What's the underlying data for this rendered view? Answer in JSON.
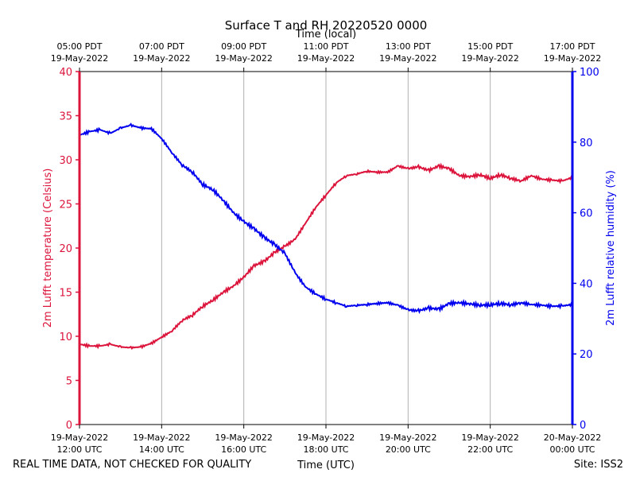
{
  "chart_data": {
    "type": "line",
    "title": "Surface T and RH 20220520 0000",
    "top_axis_label": "Time (local)",
    "xlabel": "Time (UTC)",
    "ylabel_left": "2m Lufft temperature (Celsius)",
    "ylabel_right": "2m Lufft relative humidity (%)",
    "footer_left": "REAL TIME DATA, NOT CHECKED FOR QUALITY",
    "footer_right": "Site: ISS2",
    "x_range_hours_utc": [
      12,
      24
    ],
    "ylim_left": [
      0,
      40
    ],
    "ylim_right": [
      0,
      100
    ],
    "left_ticks": [
      0,
      5,
      10,
      15,
      20,
      25,
      30,
      35,
      40
    ],
    "right_ticks": [
      0,
      20,
      40,
      60,
      80,
      100
    ],
    "x_ticks_bottom": [
      {
        "hour": 12,
        "date": "19-May-2022",
        "time": "12:00 UTC"
      },
      {
        "hour": 14,
        "date": "19-May-2022",
        "time": "14:00 UTC"
      },
      {
        "hour": 16,
        "date": "19-May-2022",
        "time": "16:00 UTC"
      },
      {
        "hour": 18,
        "date": "19-May-2022",
        "time": "18:00 UTC"
      },
      {
        "hour": 20,
        "date": "19-May-2022",
        "time": "20:00 UTC"
      },
      {
        "hour": 22,
        "date": "19-May-2022",
        "time": "22:00 UTC"
      },
      {
        "hour": 24,
        "date": "20-May-2022",
        "time": "00:00 UTC"
      }
    ],
    "x_ticks_top": [
      {
        "hour": 12,
        "time": "05:00 PDT",
        "date": "19-May-2022"
      },
      {
        "hour": 14,
        "time": "07:00 PDT",
        "date": "19-May-2022"
      },
      {
        "hour": 16,
        "time": "09:00 PDT",
        "date": "19-May-2022"
      },
      {
        "hour": 18,
        "time": "11:00 PDT",
        "date": "19-May-2022"
      },
      {
        "hour": 20,
        "time": "13:00 PDT",
        "date": "19-May-2022"
      },
      {
        "hour": 22,
        "time": "15:00 PDT",
        "date": "19-May-2022"
      },
      {
        "hour": 24,
        "time": "17:00 PDT",
        "date": "19-May-2022"
      }
    ],
    "colors": {
      "temperature": "#dc143c",
      "humidity": "#0000ee",
      "grid": "#b0b0b0"
    },
    "series": [
      {
        "name": "temperature",
        "axis": "left",
        "x": [
          12.0,
          12.25,
          12.5,
          12.75,
          13.0,
          13.25,
          13.5,
          13.75,
          14.0,
          14.25,
          14.5,
          14.75,
          15.0,
          15.25,
          15.5,
          15.75,
          16.0,
          16.25,
          16.5,
          16.75,
          17.0,
          17.25,
          17.5,
          17.75,
          18.0,
          18.25,
          18.5,
          18.75,
          19.0,
          19.25,
          19.5,
          19.75,
          20.0,
          20.25,
          20.5,
          20.75,
          21.0,
          21.25,
          21.5,
          21.75,
          22.0,
          22.25,
          22.5,
          22.75,
          23.0,
          23.25,
          23.5,
          23.75,
          24.0
        ],
        "values": [
          9.1,
          8.9,
          8.9,
          9.1,
          8.8,
          8.7,
          8.8,
          9.2,
          9.9,
          10.6,
          11.8,
          12.4,
          13.4,
          14.1,
          15.0,
          15.7,
          16.7,
          18.0,
          18.5,
          19.5,
          20.2,
          21.0,
          22.8,
          24.6,
          26.0,
          27.4,
          28.2,
          28.4,
          28.7,
          28.6,
          28.6,
          29.3,
          29.0,
          29.2,
          28.8,
          29.3,
          29.0,
          28.2,
          28.1,
          28.3,
          27.9,
          28.3,
          27.9,
          27.6,
          28.2,
          27.8,
          27.7,
          27.6,
          28.0
        ]
      },
      {
        "name": "relative humidity",
        "axis": "right",
        "x": [
          12.0,
          12.25,
          12.5,
          12.75,
          13.0,
          13.25,
          13.5,
          13.75,
          14.0,
          14.25,
          14.5,
          14.75,
          15.0,
          15.25,
          15.5,
          15.75,
          16.0,
          16.25,
          16.5,
          16.75,
          17.0,
          17.25,
          17.5,
          17.75,
          18.0,
          18.25,
          18.5,
          18.75,
          19.0,
          19.25,
          19.5,
          19.75,
          20.0,
          20.25,
          20.5,
          20.75,
          21.0,
          21.25,
          21.5,
          21.75,
          22.0,
          22.25,
          22.5,
          22.75,
          23.0,
          23.25,
          23.5,
          23.75,
          24.0
        ],
        "values": [
          82.0,
          83.0,
          83.5,
          82.5,
          84.0,
          84.8,
          84.0,
          83.8,
          81.0,
          77.0,
          73.5,
          71.5,
          68.0,
          66.5,
          63.5,
          60.0,
          57.5,
          55.5,
          53.0,
          51.0,
          48.5,
          43.0,
          39.0,
          37.0,
          35.5,
          34.5,
          33.5,
          33.8,
          34.0,
          34.3,
          34.5,
          33.8,
          32.5,
          32.2,
          33.0,
          32.7,
          34.3,
          34.5,
          34.2,
          33.8,
          33.9,
          34.3,
          33.9,
          34.5,
          34.0,
          33.8,
          33.5,
          33.6,
          34.0
        ]
      }
    ]
  }
}
